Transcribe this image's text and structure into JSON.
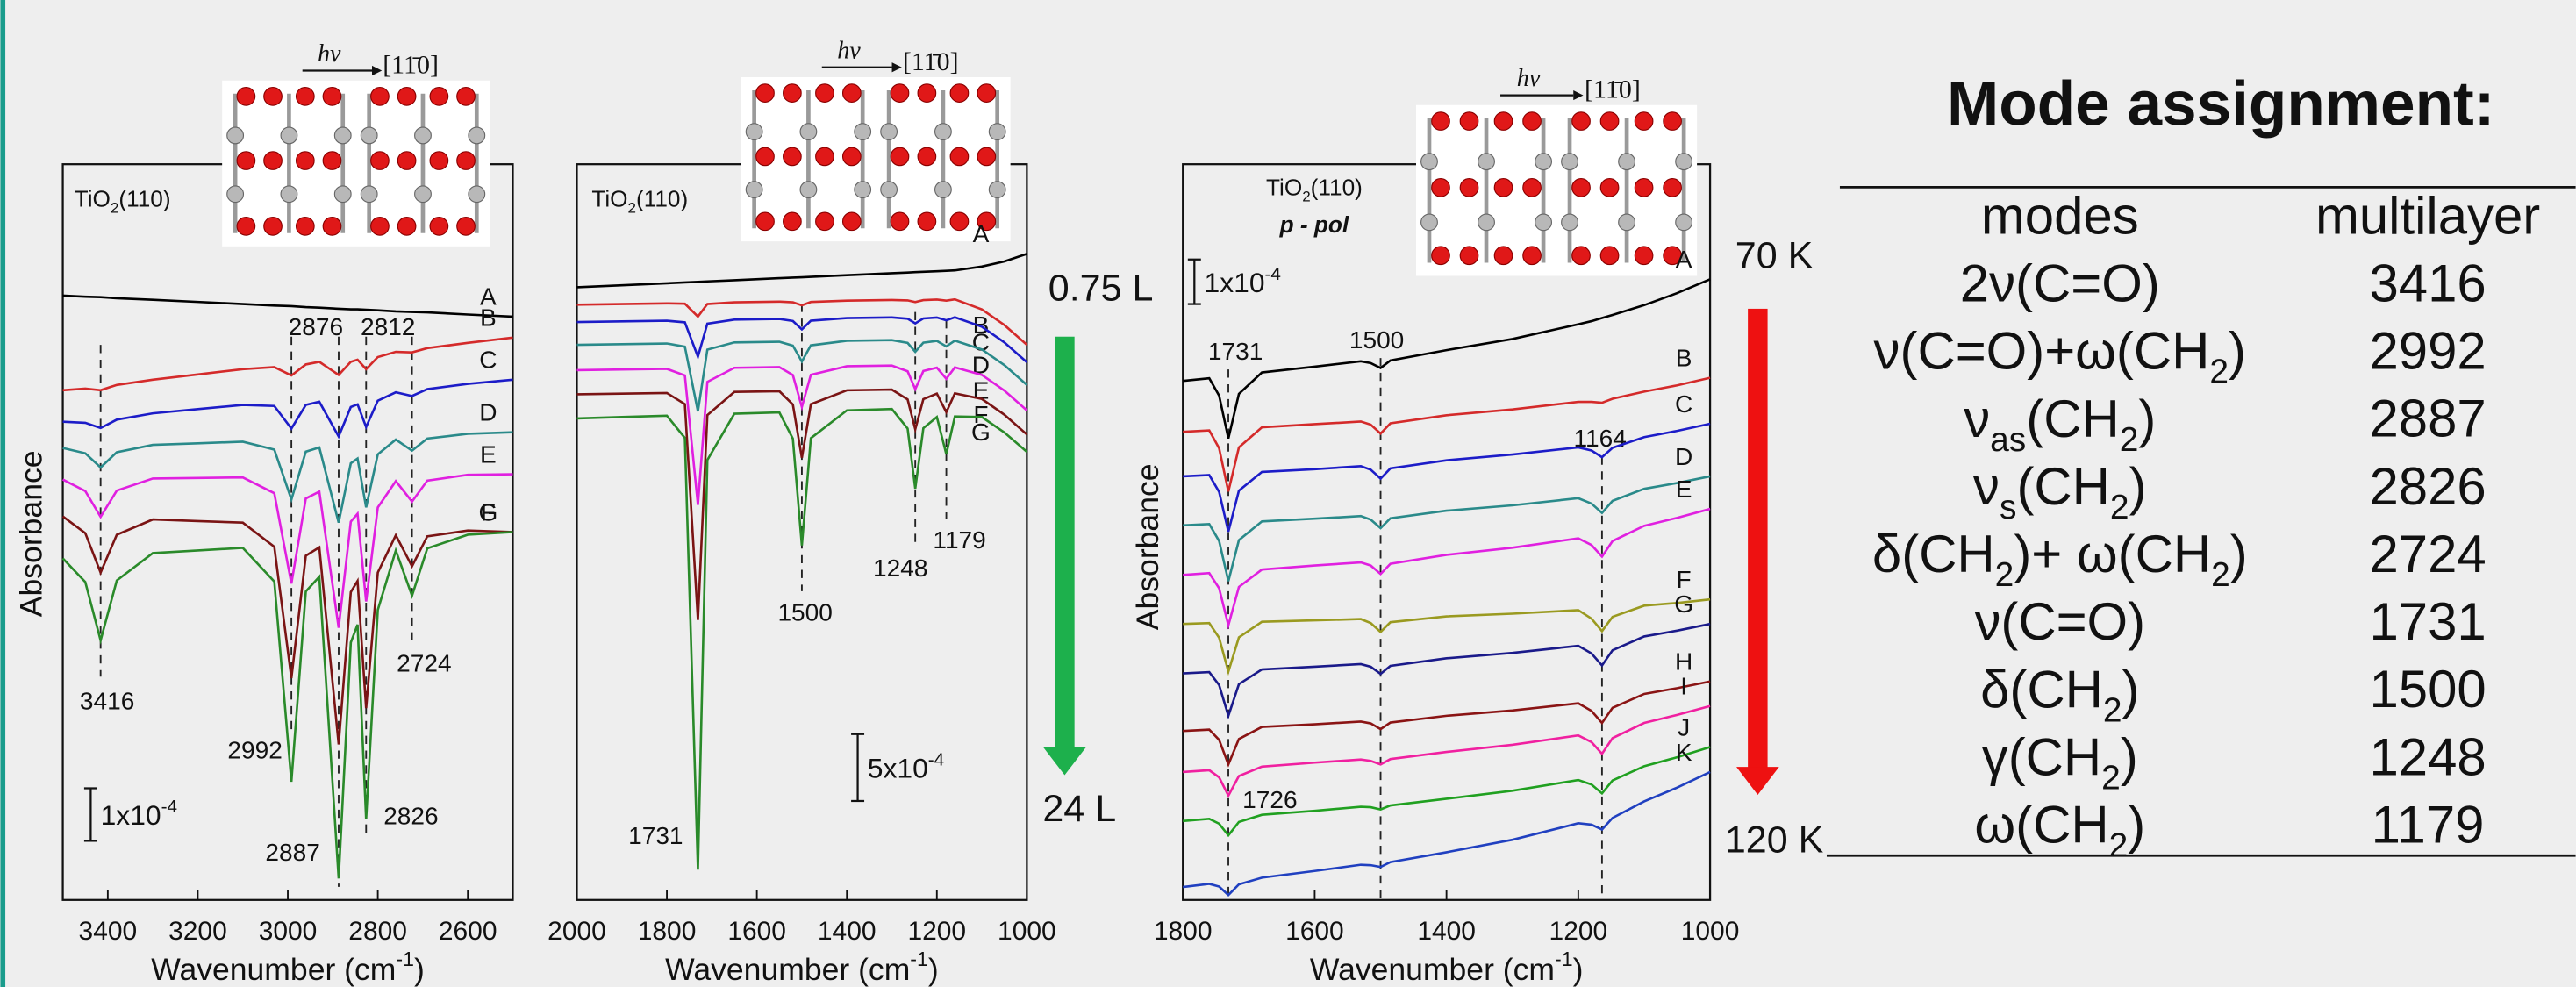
{
  "chart_data": [
    {
      "type": "line",
      "panel_label": [
        "TiO",
        "2",
        "(110)"
      ],
      "y_label": "Absorbance",
      "x_label": [
        "Wavenumber (cm",
        "-1",
        ")"
      ],
      "inset": {
        "photon": "hν",
        "direction": "[11̄0]"
      },
      "xlim": [
        3500,
        2500
      ],
      "xticks": [
        3400,
        3200,
        3000,
        2800,
        2600
      ],
      "ylim": [
        0,
        14
      ],
      "x": [
        3500,
        3450,
        3416,
        3380,
        3300,
        3200,
        3100,
        3030,
        2992,
        2960,
        2930,
        2887,
        2860,
        2845,
        2826,
        2800,
        2760,
        2724,
        2690,
        2600,
        2500
      ],
      "series": [
        {
          "name": "A",
          "color": "#000000",
          "values": [
            11.5,
            11.48,
            11.47,
            11.45,
            11.42,
            11.38,
            11.34,
            11.31,
            11.3,
            11.28,
            11.27,
            11.25,
            11.24,
            11.24,
            11.23,
            11.22,
            11.2,
            11.19,
            11.18,
            11.14,
            11.1
          ]
        },
        {
          "name": "B",
          "color": "#d42a2a",
          "values": [
            9.7,
            9.73,
            9.7,
            9.8,
            9.9,
            10,
            10.1,
            10.14,
            9.98,
            10.19,
            10.24,
            9.99,
            10.24,
            10.28,
            10.1,
            10.33,
            10.43,
            10.42,
            10.5,
            10.6,
            10.7
          ]
        },
        {
          "name": "C",
          "color": "#1c1cc8",
          "values": [
            9.1,
            9.08,
            8.98,
            9.14,
            9.26,
            9.34,
            9.42,
            9.4,
            8.97,
            9.42,
            9.48,
            8.82,
            9.38,
            9.43,
            9,
            9.5,
            9.66,
            9.59,
            9.72,
            9.82,
            9.9
          ]
        },
        {
          "name": "D",
          "color": "#2a8a8a",
          "values": [
            8.6,
            8.5,
            8.23,
            8.52,
            8.66,
            8.69,
            8.72,
            8.57,
            7.62,
            8.53,
            8.61,
            7.18,
            8.31,
            8.4,
            7.47,
            8.48,
            8.76,
            8.55,
            8.78,
            8.87,
            8.9
          ]
        },
        {
          "name": "E",
          "color": "#e020e0",
          "values": [
            8,
            7.78,
            7.29,
            7.79,
            8.02,
            8.03,
            8.04,
            7.74,
            6.02,
            7.64,
            7.77,
            5.18,
            7.2,
            7.35,
            5.68,
            7.47,
            7.97,
            7.58,
            7.98,
            8.09,
            8.1
          ]
        },
        {
          "name": "F",
          "color": "#7a1414",
          "values": [
            7.3,
            6.98,
            6.23,
            6.95,
            7.24,
            7.21,
            7.18,
            6.72,
            4.22,
            6.55,
            6.71,
            2.96,
            5.86,
            6.07,
            3.65,
            6.23,
            6.94,
            6.35,
            6.92,
            7.03,
            7
          ]
        },
        {
          "name": "G",
          "color": "#2a8a2a",
          "values": [
            6.5,
            6.05,
            4.94,
            6.08,
            6.6,
            6.65,
            6.7,
            6.06,
            2.25,
            5.87,
            6.15,
            0.41,
            4.9,
            5.24,
            1.54,
            5.52,
            6.65,
            5.79,
            6.69,
            6.95,
            7
          ]
        }
      ],
      "peaks": [
        3416,
        2992,
        2887,
        2826,
        2724,
        2876,
        2812
      ],
      "scale_bar": {
        "value": 1,
        "label": [
          "1x10",
          "-4"
        ]
      }
    },
    {
      "type": "line",
      "panel_label": [
        "TiO",
        "2",
        "(110)"
      ],
      "x_label": [
        "Wavenumber (cm",
        "-1",
        ")"
      ],
      "inset": {
        "photon": "hν",
        "direction": "[11̄0]"
      },
      "xlim": [
        2000,
        1000
      ],
      "xticks": [
        2000,
        1800,
        1600,
        1400,
        1200,
        1000
      ],
      "ylim": [
        0,
        55
      ],
      "x": [
        2000,
        1900,
        1800,
        1760,
        1731,
        1710,
        1650,
        1550,
        1520,
        1500,
        1480,
        1400,
        1300,
        1265,
        1248,
        1230,
        1200,
        1179,
        1160,
        1100,
        1050,
        1000
      ],
      "series": [
        {
          "name": "A",
          "color": "#000000",
          "values": [
            45.8,
            45.95,
            46.1,
            46.16,
            46.2,
            46.24,
            46.33,
            46.48,
            46.52,
            46.55,
            46.58,
            46.7,
            46.85,
            46.9,
            46.93,
            46.96,
            47,
            47.03,
            47.06,
            47.35,
            47.73,
            48.3
          ]
        },
        {
          "name": "B",
          "color": "#d42a2a",
          "values": [
            44.5,
            44.55,
            44.6,
            44.57,
            43.61,
            44.55,
            44.68,
            44.73,
            44.68,
            44.45,
            44.7,
            44.8,
            44.85,
            44.82,
            44.7,
            44.84,
            44.88,
            44.8,
            44.9,
            44.15,
            42.98,
            41.5
          ]
        },
        {
          "name": "C",
          "color": "#1c1cc8",
          "values": [
            43.2,
            43.25,
            43.3,
            43.18,
            40.61,
            43.08,
            43.38,
            43.43,
            43.28,
            42.65,
            43.3,
            43.5,
            43.55,
            43.45,
            43.1,
            43.47,
            43.54,
            43.33,
            43.56,
            42.85,
            41.68,
            40.2
          ]
        },
        {
          "name": "D",
          "color": "#2a8a8a",
          "values": [
            41.5,
            41.55,
            41.6,
            41.36,
            36.53,
            41.14,
            41.68,
            41.73,
            41.44,
            40.25,
            41.46,
            41.8,
            41.85,
            41.64,
            40.98,
            41.66,
            41.79,
            41.38,
            41.81,
            41.15,
            39.98,
            38.5
          ]
        },
        {
          "name": "E",
          "color": "#e020e0",
          "values": [
            39.6,
            39.65,
            39.7,
            39.21,
            29.53,
            38.73,
            39.78,
            39.83,
            39.24,
            36.85,
            39.26,
            39.9,
            39.95,
            39.52,
            38.18,
            39.54,
            39.79,
            38.96,
            39.81,
            39.25,
            38.08,
            36.6
          ]
        },
        {
          "name": "F",
          "color": "#7a1414",
          "values": [
            37.8,
            37.85,
            37.9,
            37.07,
            20.93,
            36.25,
            37.98,
            38.03,
            37.04,
            33.05,
            37.06,
            38.1,
            38.15,
            37.42,
            35.18,
            37.44,
            37.85,
            36.46,
            37.87,
            37.45,
            36.28,
            34.8
          ]
        },
        {
          "name": "G",
          "color": "#2a8a2a",
          "values": [
            36,
            36.1,
            36.2,
            34.54,
            2.27,
            32.89,
            36.35,
            36.45,
            34.48,
            26.5,
            34.52,
            36.6,
            36.7,
            35.24,
            30.75,
            35.27,
            36.1,
            33.32,
            36.14,
            36.1,
            34.95,
            33.5
          ]
        }
      ],
      "peaks": [
        1731,
        1500,
        1248,
        1179
      ],
      "scale_bar": {
        "value": 5,
        "label": [
          "5x10",
          "-4"
        ]
      },
      "arrow": {
        "color": "#1db04c",
        "start": "0.75 L",
        "end": "24 L"
      }
    },
    {
      "type": "line",
      "panel_label": [
        "TiO",
        "2",
        "(110)"
      ],
      "polarization": "p - pol",
      "y_label": "Absorbance",
      "x_label": [
        "Wavenumber (cm",
        "-1",
        ")"
      ],
      "inset": {
        "photon": "hν",
        "direction": "[11̄0]"
      },
      "xlim": [
        1800,
        1000
      ],
      "xticks": [
        1800,
        1600,
        1400,
        1200,
        1000
      ],
      "ylim": [
        0,
        16.5
      ],
      "x": [
        1800,
        1760,
        1745,
        1731,
        1715,
        1680,
        1600,
        1530,
        1515,
        1500,
        1485,
        1400,
        1300,
        1200,
        1180,
        1164,
        1148,
        1100,
        1050,
        1000
      ],
      "series": [
        {
          "name": "A",
          "color": "#000000",
          "values": [
            11.64,
            11.7,
            11.31,
            10.35,
            11.35,
            11.83,
            11.96,
            12.08,
            12.04,
            11.93,
            12.1,
            12.33,
            12.58,
            12.91,
            12.98,
            13.05,
            13.12,
            13.34,
            13.61,
            13.92
          ]
        },
        {
          "name": "B",
          "color": "#d42a2a",
          "values": [
            10.5,
            10.53,
            10.13,
            9.16,
            10.15,
            10.6,
            10.67,
            10.73,
            10.66,
            10.46,
            10.69,
            10.87,
            11,
            11.17,
            11.17,
            11.15,
            11.24,
            11.4,
            11.54,
            11.71
          ]
        },
        {
          "name": "C",
          "color": "#1c1cc8",
          "values": [
            9.5,
            9.53,
            9.15,
            8.26,
            9.18,
            9.6,
            9.66,
            9.73,
            9.65,
            9.45,
            9.68,
            9.86,
            9.99,
            10.15,
            10.08,
            9.93,
            10.14,
            10.38,
            10.52,
            10.68
          ]
        },
        {
          "name": "D",
          "color": "#2a8a8a",
          "values": [
            8.4,
            8.43,
            8.05,
            7.15,
            8.07,
            8.49,
            8.55,
            8.61,
            8.53,
            8.34,
            8.56,
            8.73,
            8.85,
            9.01,
            8.89,
            8.68,
            8.95,
            9.22,
            9.35,
            9.5
          ]
        },
        {
          "name": "E",
          "color": "#e020e0",
          "values": [
            7.29,
            7.33,
            6.99,
            6.16,
            7.02,
            7.41,
            7.5,
            7.57,
            7.5,
            7.31,
            7.54,
            7.74,
            7.9,
            8.11,
            7.96,
            7.7,
            8.05,
            8.39,
            8.57,
            8.77
          ]
        },
        {
          "name": "F",
          "color": "#9a9a20",
          "values": [
            6.19,
            6.21,
            5.88,
            5.12,
            5.89,
            6.24,
            6.27,
            6.3,
            6.21,
            6.01,
            6.23,
            6.36,
            6.42,
            6.5,
            6.31,
            6.03,
            6.35,
            6.6,
            6.66,
            6.74
          ]
        },
        {
          "name": "G",
          "color": "#1a1a8a",
          "values": [
            5.08,
            5.11,
            4.82,
            4.13,
            4.84,
            5.17,
            5.23,
            5.29,
            5.23,
            5.07,
            5.25,
            5.42,
            5.54,
            5.7,
            5.53,
            5.26,
            5.6,
            5.91,
            6.04,
            6.19
          ]
        },
        {
          "name": "H",
          "color": "#8a1414",
          "values": [
            3.79,
            3.82,
            3.59,
            3.04,
            3.61,
            3.88,
            3.94,
            4,
            3.96,
            3.83,
            3.98,
            4.13,
            4.25,
            4.41,
            4.24,
            3.97,
            4.31,
            4.62,
            4.75,
            4.9
          ]
        },
        {
          "name": "I",
          "color": "#f020a0",
          "values": [
            2.87,
            2.91,
            2.75,
            2.34,
            2.78,
            2.99,
            3.08,
            3.15,
            3.12,
            3.04,
            3.16,
            3.32,
            3.48,
            3.69,
            3.54,
            3.28,
            3.63,
            3.97,
            4.15,
            4.35
          ]
        },
        {
          "name": "J",
          "color": "#20a020",
          "values": [
            1.77,
            1.82,
            1.71,
            1.45,
            1.75,
            1.91,
            2,
            2.09,
            2.08,
            2.03,
            2.12,
            2.27,
            2.45,
            2.69,
            2.59,
            2.39,
            2.68,
            3,
            3.2,
            3.43
          ]
        },
        {
          "name": "K",
          "color": "#2040c0",
          "values": [
            0.29,
            0.36,
            0.3,
            0.11,
            0.35,
            0.5,
            0.65,
            0.79,
            0.78,
            0.74,
            0.85,
            1.07,
            1.35,
            1.72,
            1.69,
            1.58,
            1.84,
            2.21,
            2.52,
            2.87
          ]
        }
      ],
      "peaks": [
        1731,
        1500,
        1164,
        1726
      ],
      "scale_bar": {
        "value": 1,
        "label": [
          "1x10",
          "-4"
        ]
      },
      "arrow": {
        "color": "#ee1111",
        "start": "70 K",
        "end": "120 K"
      }
    }
  ],
  "mode_table": {
    "title": "Mode assignment:",
    "columns": [
      "modes",
      "multilayer"
    ],
    "rows": [
      {
        "mode": [
          "2ν(C=O)"
        ],
        "multilayer": 3416
      },
      {
        "mode": [
          "ν(C=O)+ω(CH",
          "2",
          ")"
        ],
        "multilayer": 2992
      },
      {
        "mode": [
          "ν",
          "as",
          "(CH",
          "2",
          ")"
        ],
        "multilayer": 2887
      },
      {
        "mode": [
          "ν",
          "s",
          "(CH",
          "2",
          ")"
        ],
        "multilayer": 2826
      },
      {
        "mode": [
          "δ(CH",
          "2",
          ")+ ω(CH",
          "2",
          ")"
        ],
        "multilayer": 2724
      },
      {
        "mode": [
          "ν(C=O)"
        ],
        "multilayer": 1731
      },
      {
        "mode": [
          "δ(CH",
          "2",
          ")"
        ],
        "multilayer": 1500
      },
      {
        "mode": [
          "γ(CH",
          "2",
          ")"
        ],
        "multilayer": 1248
      },
      {
        "mode": [
          "ω(CH",
          "2",
          ")"
        ],
        "multilayer": 1179
      }
    ]
  }
}
